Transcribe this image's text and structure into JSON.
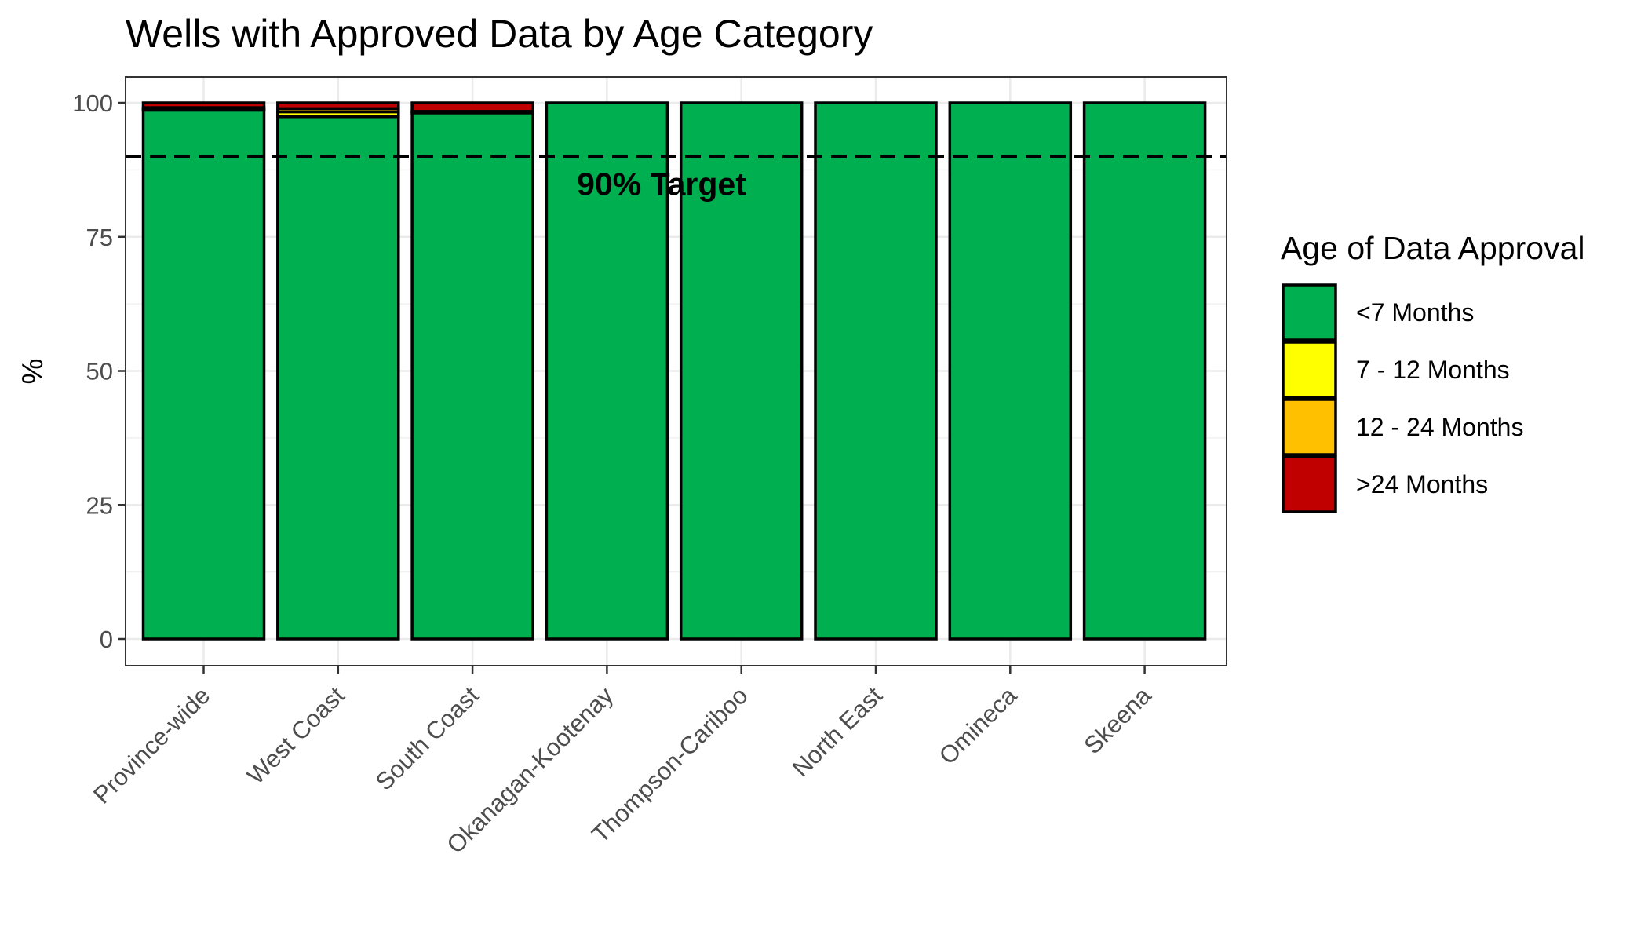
{
  "chart_data": {
    "type": "bar",
    "stacked": true,
    "title": "Wells with Approved Data by Age Category",
    "xlabel": "",
    "ylabel": "%",
    "ylim": [
      0,
      105
    ],
    "yticks": [
      0,
      25,
      50,
      75,
      100
    ],
    "categories": [
      "Province-wide",
      "West Coast",
      "South Coast",
      "Okanagan-Kootenay",
      "Thompson-Cariboo",
      "North East",
      "Omineca",
      "Skeena"
    ],
    "series": [
      {
        "name": "<7 Months",
        "color": "#00AF50",
        "values": [
          98.6,
          97.4,
          98.1,
          100,
          100,
          100,
          100,
          100
        ]
      },
      {
        "name": "7 - 12 Months",
        "color": "#FFFF00",
        "values": [
          0.2,
          0.9,
          0.0,
          0,
          0,
          0,
          0,
          0
        ]
      },
      {
        "name": "12 - 24 Months",
        "color": "#FFC000",
        "values": [
          0.3,
          0.6,
          0.3,
          0,
          0,
          0,
          0,
          0
        ]
      },
      {
        "name": ">24 Months",
        "color": "#C00000",
        "values": [
          0.9,
          1.1,
          1.6,
          0,
          0,
          0,
          0,
          0
        ]
      }
    ],
    "reference_line": {
      "value": 90,
      "style": "dashed",
      "label": "90% Target"
    },
    "legend": {
      "title": "Age of Data Approval",
      "position": "right"
    },
    "grid": true,
    "theme": "bw"
  }
}
